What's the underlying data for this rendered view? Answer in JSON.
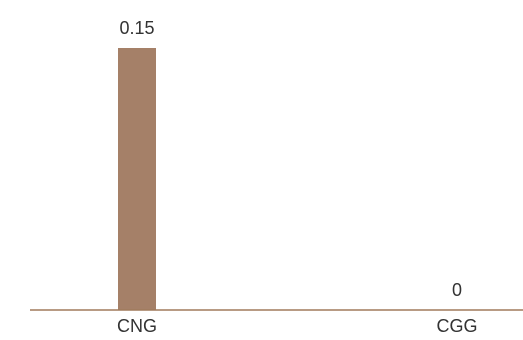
{
  "chart_data": {
    "type": "bar",
    "title": "",
    "xlabel": "",
    "ylabel": "",
    "categories": [
      "CNG",
      "CGG"
    ],
    "values": [
      0.15,
      0
    ],
    "value_labels": [
      "0.15",
      "0"
    ],
    "ylim": [
      0,
      0.16
    ],
    "grid": false,
    "legend": "none",
    "bar_color": "#a58068",
    "axis_color": "#a07a5c"
  }
}
